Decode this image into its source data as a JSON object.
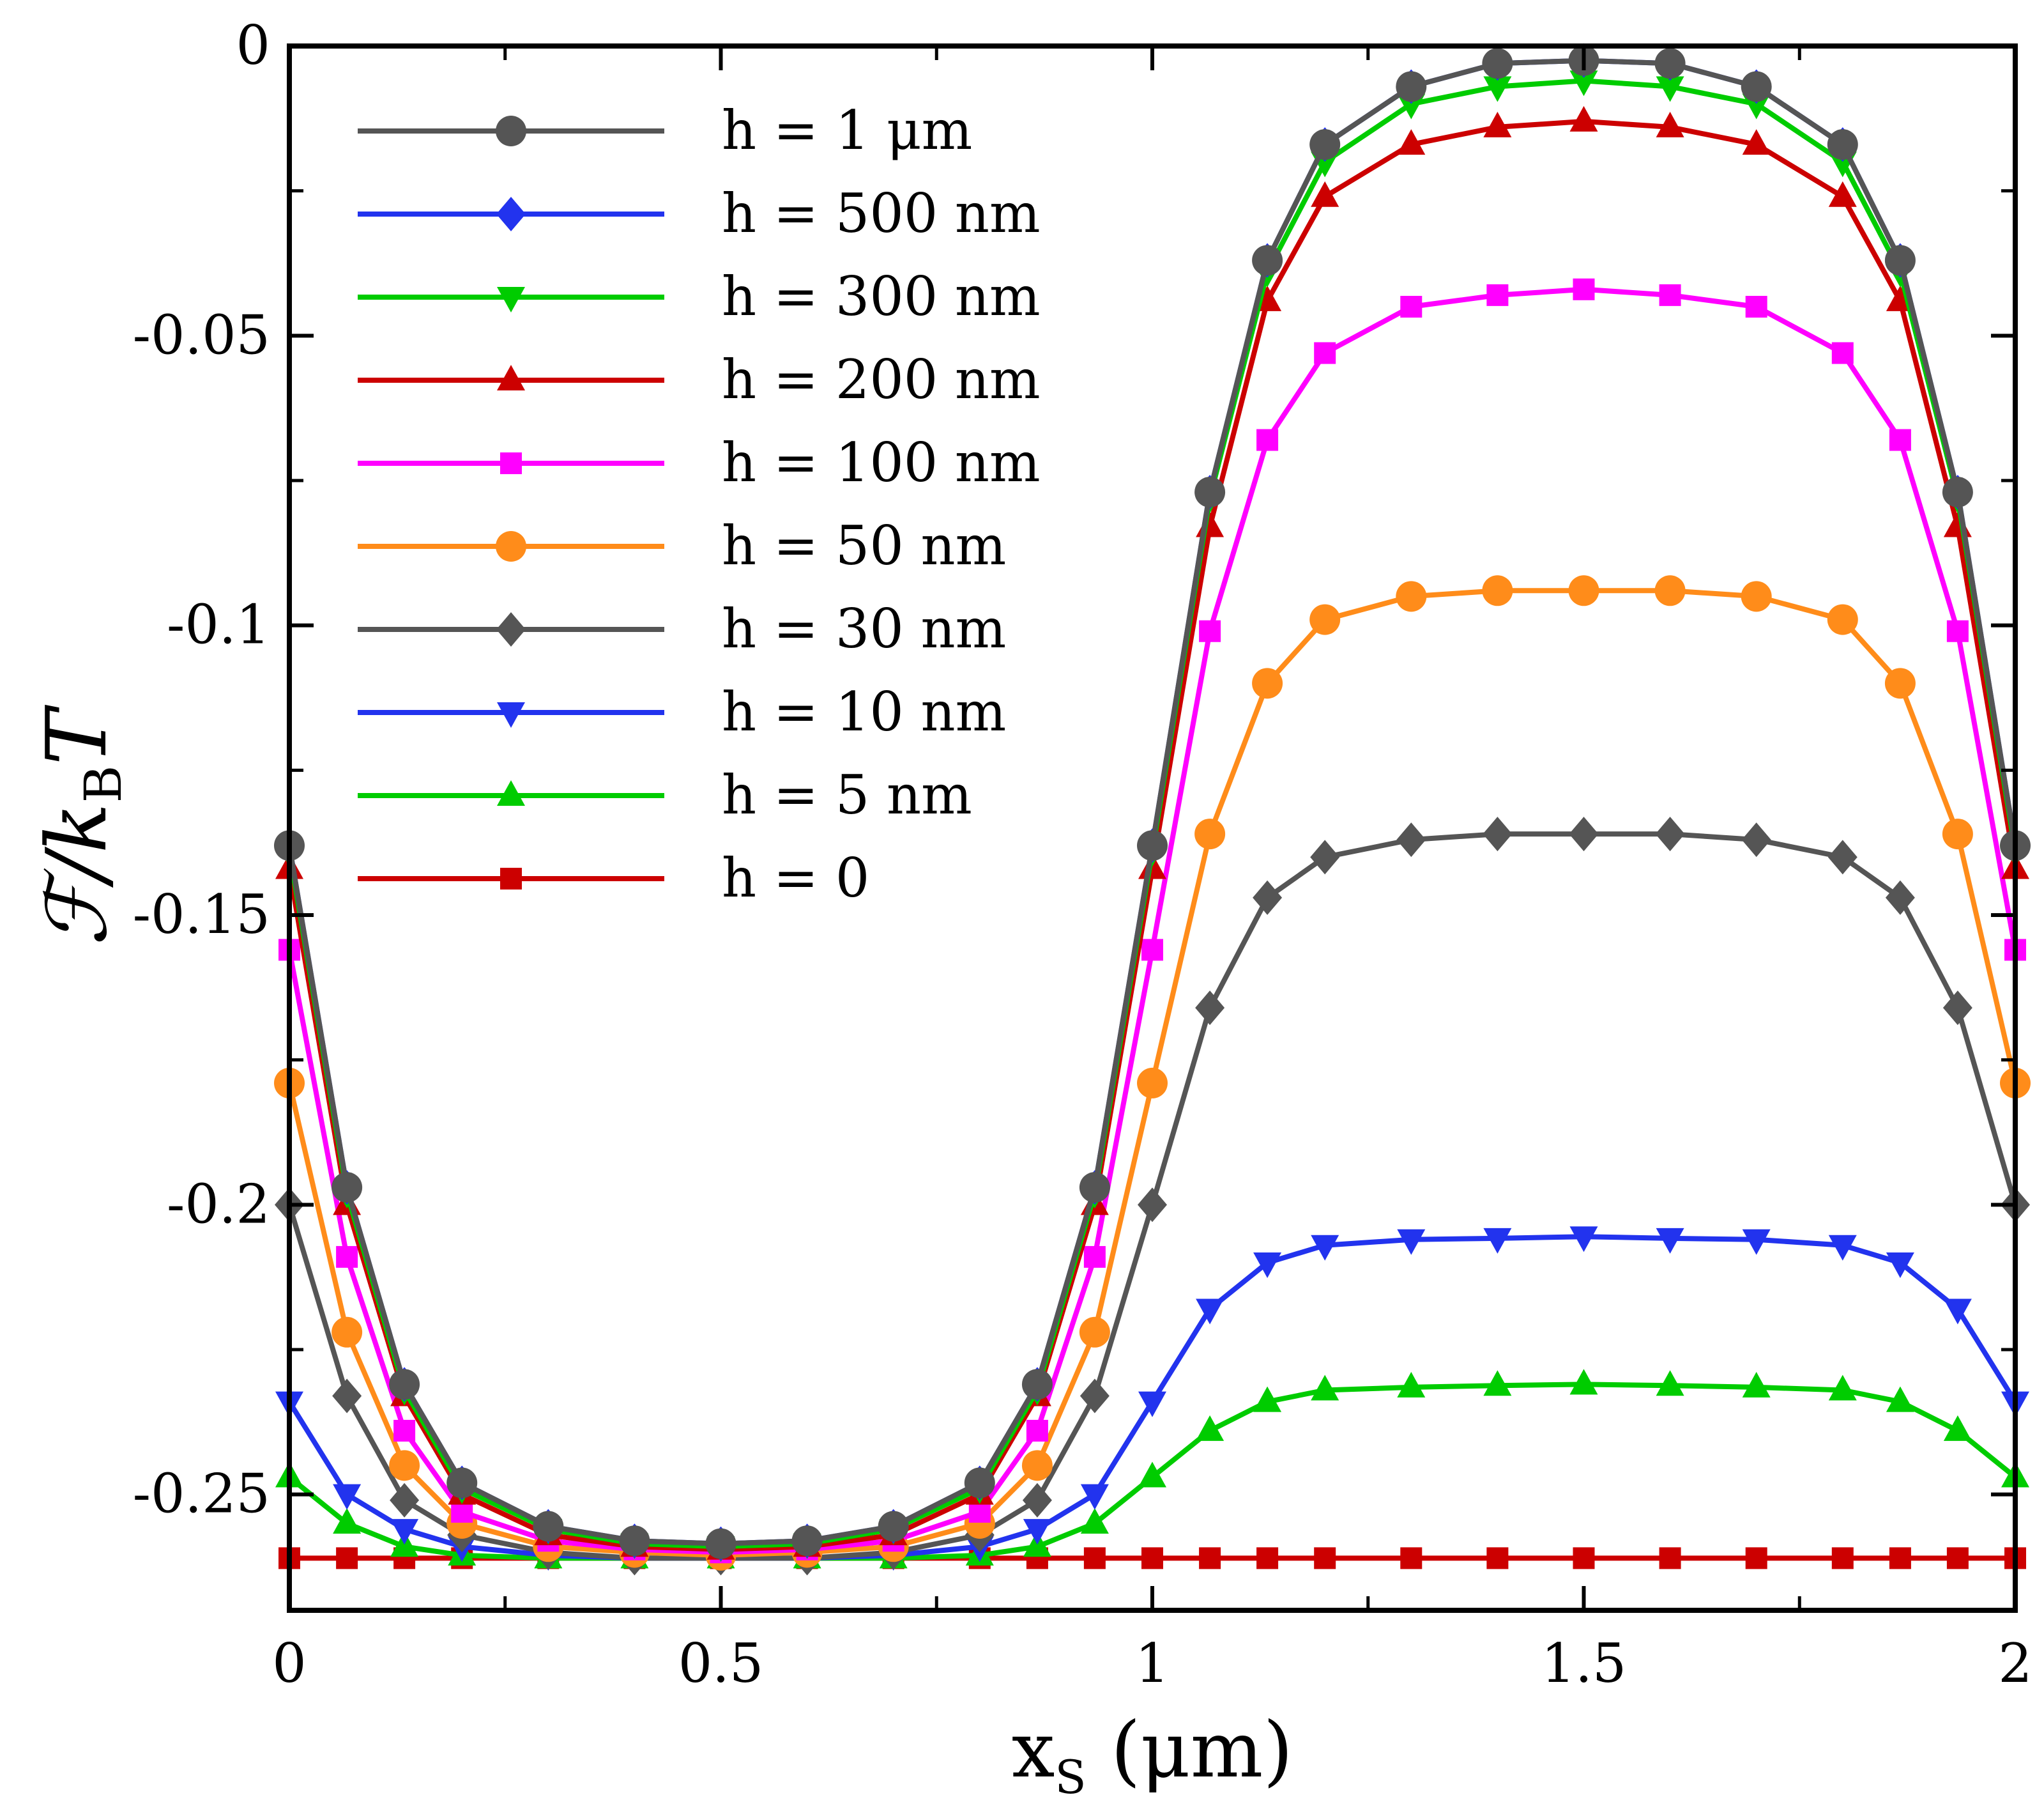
{
  "chart_data": {
    "type": "line",
    "xlabel": "x",
    "xlabel_sub": "S",
    "xlabel_unit": " (μm)",
    "ylabel_main": "ℱ/k",
    "ylabel_sub": "B",
    "ylabel_tail": "T",
    "xlim": [
      0,
      2
    ],
    "ylim": [
      -0.27,
      0
    ],
    "xticks": [
      0,
      0.5,
      1,
      1.5,
      2
    ],
    "xtick_labels": [
      "0",
      "0.5",
      "1",
      "1.5",
      "2"
    ],
    "yticks": [
      0,
      -0.05,
      -0.1,
      -0.15,
      -0.2,
      -0.25
    ],
    "ytick_labels": [
      "0",
      "-0.05",
      "-0.1",
      "-0.15",
      "-0.2",
      "-0.25"
    ],
    "grid": false,
    "legend_position": "top-left",
    "x": [
      0,
      0.0667,
      0.1333,
      0.2,
      0.3,
      0.4,
      0.5,
      0.6,
      0.7,
      0.8,
      0.8667,
      0.9333,
      1.0,
      1.0667,
      1.1333,
      1.2,
      1.3,
      1.4,
      1.5,
      1.6,
      1.7,
      1.8,
      1.8667,
      1.9333,
      2.0
    ],
    "series": [
      {
        "name": "h = 1 μm",
        "color": "#555555",
        "marker": "circle",
        "values": [
          -0.138,
          -0.197,
          -0.231,
          -0.248,
          -0.2555,
          -0.258,
          -0.2585,
          -0.258,
          -0.2555,
          -0.248,
          -0.231,
          -0.197,
          -0.138,
          -0.077,
          -0.037,
          -0.017,
          -0.007,
          -0.003,
          -0.0025,
          -0.003,
          -0.007,
          -0.017,
          -0.037,
          -0.077,
          -0.138
        ]
      },
      {
        "name": "h = 500 nm",
        "color": "#2233ee",
        "marker": "diamond",
        "values": [
          -0.138,
          -0.197,
          -0.231,
          -0.248,
          -0.2555,
          -0.258,
          -0.2585,
          -0.258,
          -0.2555,
          -0.248,
          -0.231,
          -0.197,
          -0.138,
          -0.077,
          -0.037,
          -0.017,
          -0.007,
          -0.003,
          -0.0025,
          -0.003,
          -0.007,
          -0.017,
          -0.037,
          -0.077,
          -0.138
        ]
      },
      {
        "name": "h = 300 nm",
        "color": "#00cc00",
        "marker": "triangle-down",
        "values": [
          -0.139,
          -0.198,
          -0.232,
          -0.249,
          -0.256,
          -0.2585,
          -0.259,
          -0.2585,
          -0.256,
          -0.249,
          -0.232,
          -0.198,
          -0.139,
          -0.078,
          -0.039,
          -0.02,
          -0.01,
          -0.007,
          -0.006,
          -0.007,
          -0.01,
          -0.02,
          -0.039,
          -0.078,
          -0.139
        ]
      },
      {
        "name": "h = 200 nm",
        "color": "#cc0000",
        "marker": "triangle-up",
        "values": [
          -0.142,
          -0.2,
          -0.233,
          -0.25,
          -0.257,
          -0.259,
          -0.2595,
          -0.259,
          -0.257,
          -0.25,
          -0.233,
          -0.2,
          -0.142,
          -0.083,
          -0.044,
          -0.026,
          -0.017,
          -0.014,
          -0.013,
          -0.014,
          -0.017,
          -0.026,
          -0.044,
          -0.083,
          -0.142
        ]
      },
      {
        "name": "h = 100 nm",
        "color": "#ff00ff",
        "marker": "square",
        "values": [
          -0.156,
          -0.209,
          -0.239,
          -0.253,
          -0.258,
          -0.2595,
          -0.26,
          -0.2595,
          -0.258,
          -0.253,
          -0.239,
          -0.209,
          -0.156,
          -0.101,
          -0.068,
          -0.053,
          -0.045,
          -0.043,
          -0.042,
          -0.043,
          -0.045,
          -0.053,
          -0.068,
          -0.101,
          -0.156
        ]
      },
      {
        "name": "h = 50 nm",
        "color": "#ff8c1a",
        "marker": "circle",
        "values": [
          -0.179,
          -0.222,
          -0.245,
          -0.255,
          -0.259,
          -0.26,
          -0.2605,
          -0.26,
          -0.259,
          -0.255,
          -0.245,
          -0.222,
          -0.179,
          -0.136,
          -0.11,
          -0.099,
          -0.095,
          -0.094,
          -0.094,
          -0.094,
          -0.095,
          -0.099,
          -0.11,
          -0.136,
          -0.179
        ]
      },
      {
        "name": "h = 30 nm",
        "color": "#555555",
        "marker": "diamond",
        "values": [
          -0.2,
          -0.233,
          -0.251,
          -0.257,
          -0.26,
          -0.261,
          -0.261,
          -0.261,
          -0.26,
          -0.257,
          -0.251,
          -0.233,
          -0.2,
          -0.166,
          -0.147,
          -0.14,
          -0.137,
          -0.136,
          -0.136,
          -0.136,
          -0.137,
          -0.14,
          -0.147,
          -0.166,
          -0.2
        ]
      },
      {
        "name": "h = 10 nm",
        "color": "#2233ee",
        "marker": "triangle-down",
        "values": [
          -0.234,
          -0.25,
          -0.256,
          -0.259,
          -0.2605,
          -0.261,
          -0.261,
          -0.261,
          -0.2605,
          -0.259,
          -0.256,
          -0.25,
          -0.234,
          -0.218,
          -0.21,
          -0.207,
          -0.206,
          -0.2058,
          -0.2055,
          -0.2058,
          -0.206,
          -0.207,
          -0.21,
          -0.218,
          -0.234
        ]
      },
      {
        "name": "h = 5 nm",
        "color": "#00cc00",
        "marker": "triangle-up",
        "values": [
          -0.247,
          -0.255,
          -0.259,
          -0.2605,
          -0.261,
          -0.261,
          -0.261,
          -0.261,
          -0.261,
          -0.2605,
          -0.259,
          -0.255,
          -0.247,
          -0.239,
          -0.234,
          -0.232,
          -0.2315,
          -0.2312,
          -0.231,
          -0.2312,
          -0.2315,
          -0.232,
          -0.234,
          -0.239,
          -0.247
        ]
      },
      {
        "name": "h = 0",
        "color": "#cc0000",
        "marker": "square",
        "values": [
          -0.261,
          -0.261,
          -0.261,
          -0.261,
          -0.261,
          -0.261,
          -0.261,
          -0.261,
          -0.261,
          -0.261,
          -0.261,
          -0.261,
          -0.261,
          -0.261,
          -0.261,
          -0.261,
          -0.261,
          -0.261,
          -0.261,
          -0.261,
          -0.261,
          -0.261,
          -0.261,
          -0.261,
          -0.261
        ]
      }
    ]
  }
}
